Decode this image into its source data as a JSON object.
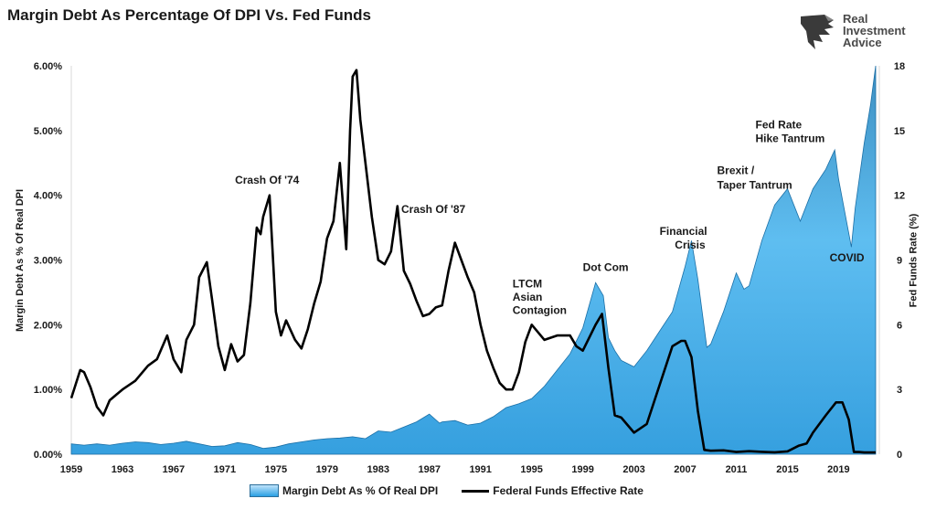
{
  "title": "Margin Debt As Percentage Of DPI Vs. Fed Funds",
  "logo": {
    "line1": "Real",
    "line2": "Investment",
    "line3": "Advice"
  },
  "colors": {
    "area_top": "#0f74b6",
    "area_light": "#c5e7fb",
    "line": "#000000",
    "axis": "#d9d9d9"
  },
  "chart_data": {
    "type": "area+line",
    "title": "Margin Debt As Percentage Of DPI Vs. Fed Funds",
    "xlabel": "",
    "ylabel_left": "Margin Debt As % Of Real DPI",
    "ylabel_right": "Fed Funds Rate (%)",
    "x_range": [
      1959,
      2021.9
    ],
    "y_left_range": [
      0,
      6
    ],
    "y_right_range": [
      0,
      18
    ],
    "x_ticks": [
      1959,
      1963,
      1967,
      1971,
      1975,
      1979,
      1983,
      1987,
      1991,
      1995,
      1999,
      2003,
      2007,
      2011,
      2015,
      2019
    ],
    "x_tick_labels": [
      "1959",
      "1963",
      "1967",
      "1971",
      "1975",
      "1979",
      "1983",
      "1987",
      "1991",
      "1995",
      "1999",
      "2003",
      "2007",
      "2011",
      "2015",
      "2019"
    ],
    "y_left_ticks": [
      0,
      1,
      2,
      3,
      4,
      5,
      6
    ],
    "y_left_tick_labels": [
      "0.00%",
      "1.00%",
      "2.00%",
      "3.00%",
      "4.00%",
      "5.00%",
      "6.00%"
    ],
    "y_right_ticks": [
      0,
      3,
      6,
      9,
      12,
      15,
      18
    ],
    "y_right_tick_labels": [
      "0",
      "3",
      "6",
      "9",
      "12",
      "15",
      "18"
    ],
    "series": [
      {
        "name": "Margin Debt As % Of Real DPI",
        "kind": "area",
        "axis": "left",
        "x": [
          1959,
          1960,
          1961,
          1962,
          1963,
          1964,
          1965,
          1966,
          1967,
          1968,
          1969,
          1970,
          1971,
          1972,
          1973,
          1974,
          1975,
          1976,
          1977,
          1978,
          1979,
          1980,
          1981,
          1982,
          1983,
          1984,
          1985,
          1986,
          1987,
          1987.8,
          1988,
          1989,
          1990,
          1991,
          1992,
          1993,
          1994,
          1995,
          1996,
          1997,
          1998,
          1999,
          2000,
          2000.6,
          2001,
          2001.5,
          2002,
          2003,
          2004,
          2005,
          2006,
          2007,
          2007.5,
          2008,
          2008.7,
          2009,
          2010,
          2011,
          2011.6,
          2012,
          2013,
          2014,
          2015,
          2016,
          2017,
          2018,
          2018.7,
          2019,
          2020,
          2020.3,
          2021,
          2021.5,
          2021.9
        ],
        "values": [
          0.16,
          0.14,
          0.16,
          0.14,
          0.17,
          0.19,
          0.18,
          0.15,
          0.17,
          0.2,
          0.16,
          0.12,
          0.13,
          0.18,
          0.15,
          0.09,
          0.11,
          0.16,
          0.19,
          0.22,
          0.24,
          0.25,
          0.27,
          0.24,
          0.36,
          0.34,
          0.42,
          0.5,
          0.62,
          0.48,
          0.5,
          0.52,
          0.45,
          0.48,
          0.58,
          0.72,
          0.78,
          0.86,
          1.05,
          1.3,
          1.55,
          1.95,
          2.65,
          2.45,
          1.8,
          1.6,
          1.45,
          1.35,
          1.6,
          1.9,
          2.2,
          2.9,
          3.3,
          2.7,
          1.65,
          1.7,
          2.2,
          2.8,
          2.55,
          2.6,
          3.3,
          3.85,
          4.1,
          3.6,
          4.1,
          4.4,
          4.7,
          4.25,
          3.2,
          3.8,
          4.8,
          5.4,
          6.0
        ]
      },
      {
        "name": "Federal Funds Effective Rate",
        "kind": "line",
        "axis": "right",
        "x": [
          1959,
          1959.7,
          1960,
          1960.5,
          1961,
          1961.5,
          1962,
          1963,
          1964,
          1965,
          1965.7,
          1966.5,
          1967,
          1967.6,
          1968,
          1968.6,
          1969,
          1969.6,
          1970,
          1970.5,
          1971,
          1971.5,
          1972,
          1972.5,
          1973,
          1973.5,
          1973.8,
          1974,
          1974.5,
          1975,
          1975.4,
          1975.8,
          1976.5,
          1977,
          1977.5,
          1978,
          1978.5,
          1979,
          1979.5,
          1980,
          1980.5,
          1980.8,
          1981,
          1981.3,
          1981.6,
          1982,
          1982.5,
          1983,
          1983.5,
          1984,
          1984.5,
          1985,
          1985.5,
          1986,
          1986.5,
          1987,
          1987.5,
          1988,
          1988.5,
          1989,
          1989.5,
          1990,
          1990.5,
          1991,
          1991.5,
          1992,
          1992.5,
          1993,
          1993.5,
          1994,
          1994.5,
          1995,
          1996,
          1997,
          1998,
          1998.5,
          1999,
          2000,
          2000.5,
          2001,
          2001.5,
          2002,
          2003,
          2004,
          2005,
          2006,
          2006.7,
          2007,
          2007.5,
          2008,
          2008.5,
          2009,
          2010,
          2011,
          2012,
          2013,
          2014,
          2015,
          2015.9,
          2016.5,
          2017,
          2018,
          2018.8,
          2019.3,
          2019.8,
          2020.2,
          2020.6,
          2021,
          2021.9
        ],
        "values": [
          2.6,
          3.9,
          3.8,
          3.1,
          2.2,
          1.8,
          2.5,
          3.0,
          3.4,
          4.1,
          4.4,
          5.5,
          4.4,
          3.8,
          5.3,
          6.0,
          8.2,
          8.9,
          7.2,
          5.0,
          3.9,
          5.1,
          4.3,
          4.6,
          7.0,
          10.5,
          10.2,
          11.0,
          12.0,
          6.6,
          5.5,
          6.2,
          5.3,
          4.9,
          5.8,
          7.0,
          8.0,
          10.0,
          10.8,
          13.5,
          9.5,
          15.0,
          17.5,
          17.8,
          15.5,
          13.5,
          11.0,
          9.0,
          8.8,
          9.4,
          11.5,
          8.5,
          7.9,
          7.1,
          6.4,
          6.5,
          6.8,
          6.9,
          8.5,
          9.8,
          9.0,
          8.2,
          7.5,
          6.0,
          4.8,
          4.0,
          3.3,
          3.0,
          3.0,
          3.8,
          5.2,
          6.0,
          5.3,
          5.5,
          5.5,
          5.0,
          4.8,
          6.0,
          6.5,
          4.0,
          1.8,
          1.7,
          1.0,
          1.4,
          3.2,
          5.0,
          5.25,
          5.25,
          4.5,
          2.0,
          0.2,
          0.16,
          0.18,
          0.1,
          0.14,
          0.11,
          0.09,
          0.13,
          0.4,
          0.5,
          1.0,
          1.8,
          2.4,
          2.4,
          1.6,
          0.1,
          0.1,
          0.08,
          0.08
        ]
      }
    ],
    "annotations": [
      {
        "text": "Crash Of '74",
        "x": 1971.8,
        "y_pct": 4.18
      },
      {
        "text": "Crash Of '87",
        "x": 1984.8,
        "y_pct": 3.73
      },
      {
        "text": "LTCM",
        "x": 1993.5,
        "y_pct": 2.58
      },
      {
        "text": "Asian",
        "x": 1993.5,
        "y_pct": 2.37
      },
      {
        "text": "Contagion",
        "x": 1993.5,
        "y_pct": 2.17
      },
      {
        "text": "Dot Com",
        "x": 1999,
        "y_pct": 2.83
      },
      {
        "text": "Financial",
        "x": 2005,
        "y_pct": 3.39
      },
      {
        "text": "Crisis",
        "x": 2006.2,
        "y_pct": 3.18
      },
      {
        "text": "Brexit /",
        "x": 2009.5,
        "y_pct": 4.33
      },
      {
        "text": "Taper Tantrum",
        "x": 2009.5,
        "y_pct": 4.1
      },
      {
        "text": "Fed Rate",
        "x": 2012.5,
        "y_pct": 5.03
      },
      {
        "text": "Hike Tantrum",
        "x": 2012.5,
        "y_pct": 4.82
      },
      {
        "text": "COVID",
        "x": 2018.3,
        "y_pct": 2.98
      }
    ],
    "legend": [
      "Margin Debt As % Of Real DPI",
      "Federal Funds Effective Rate"
    ],
    "legend_position": "bottom-center",
    "grid": false
  }
}
